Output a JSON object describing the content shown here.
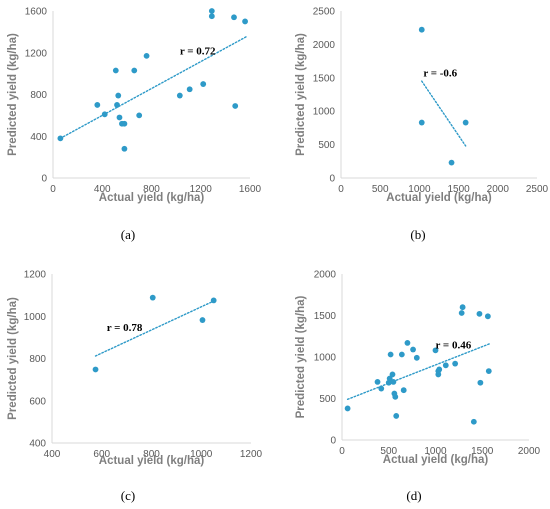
{
  "colors": {
    "points": "#2e9ac8",
    "trend": "#2e9ac8",
    "axis": "#d9d9d9",
    "tick_text": "#595959",
    "axis_label": "#7f7f7f"
  },
  "chart_data": [
    {
      "type": "scatter",
      "panel_label": "(a)",
      "xlabel": "Actual yield (kg/ha)",
      "ylabel": "Predicted yield (kg/ha)",
      "xlim": [
        0,
        1600
      ],
      "ylim": [
        0,
        1600
      ],
      "xticks": [
        0,
        400,
        800,
        1200,
        1600
      ],
      "yticks": [
        0,
        400,
        800,
        1200,
        1600
      ],
      "annotation": "r = 0.72",
      "trendline": {
        "style": "dotted",
        "x": [
          60,
          1580
        ],
        "y": [
          380,
          1360
        ]
      },
      "points": {
        "x": [
          60,
          360,
          420,
          510,
          520,
          530,
          540,
          560,
          580,
          580,
          660,
          700,
          760,
          1030,
          1110,
          1220,
          1290,
          1290,
          1470,
          1480,
          1560
        ],
        "y": [
          380,
          700,
          610,
          1030,
          700,
          790,
          580,
          520,
          520,
          280,
          1030,
          600,
          1170,
          790,
          850,
          900,
          1550,
          1600,
          1540,
          690,
          1500
        ]
      }
    },
    {
      "type": "scatter",
      "panel_label": "(b)",
      "xlabel": "Actual yield (kg/ha)",
      "ylabel": "Predicted yield (kg/ha)",
      "xlim": [
        0,
        2500
      ],
      "ylim": [
        0,
        2500
      ],
      "xticks": [
        0,
        500,
        1000,
        1500,
        2000,
        2500
      ],
      "yticks": [
        0,
        500,
        1000,
        1500,
        2000,
        2500
      ],
      "annotation": "r = -0.6",
      "trendline": {
        "style": "dotted",
        "x": [
          1030,
          1590
        ],
        "y": [
          1450,
          480
        ]
      },
      "points": {
        "x": [
          1030,
          1030,
          1410,
          1590
        ],
        "y": [
          2220,
          830,
          230,
          830
        ]
      }
    },
    {
      "type": "scatter",
      "panel_label": "(c)",
      "xlabel": "Actual yield (kg/ha)",
      "ylabel": "Predicted yield (kg/ha)",
      "xlim": [
        400,
        1200
      ],
      "ylim": [
        400,
        1200
      ],
      "xticks": [
        400,
        600,
        800,
        1000,
        1200
      ],
      "yticks": [
        400,
        600,
        800,
        1000,
        1200
      ],
      "annotation": "r = 0.78",
      "trendline": {
        "style": "dotted",
        "x": [
          575,
          1050
        ],
        "y": [
          812,
          1072
        ]
      },
      "points": {
        "x": [
          575,
          805,
          1005,
          1050
        ],
        "y": [
          748,
          1088,
          982,
          1075
        ]
      }
    },
    {
      "type": "scatter",
      "panel_label": "(d)",
      "xlabel": "Actual yield (kg/ha)",
      "ylabel": "Predicted yield (kg/ha)",
      "xlim": [
        0,
        2000
      ],
      "ylim": [
        0,
        2000
      ],
      "xticks": [
        0,
        500,
        1000,
        1500,
        2000
      ],
      "yticks": [
        0,
        500,
        1000,
        1500,
        2000
      ],
      "annotation": "r = 0.46",
      "trendline": {
        "style": "dotted",
        "x": [
          60,
          1580
        ],
        "y": [
          490,
          1160
        ]
      },
      "points": {
        "x": [
          60,
          380,
          420,
          500,
          510,
          520,
          540,
          550,
          560,
          570,
          580,
          640,
          660,
          700,
          760,
          800,
          1000,
          1030,
          1030,
          1040,
          1110,
          1210,
          1280,
          1290,
          1410,
          1470,
          1480,
          1560,
          1570
        ],
        "y": [
          380,
          700,
          620,
          690,
          740,
          1030,
          790,
          700,
          560,
          520,
          290,
          1030,
          600,
          1170,
          1090,
          990,
          1080,
          830,
          790,
          850,
          900,
          920,
          1530,
          1600,
          220,
          1520,
          690,
          1490,
          830
        ]
      }
    }
  ]
}
